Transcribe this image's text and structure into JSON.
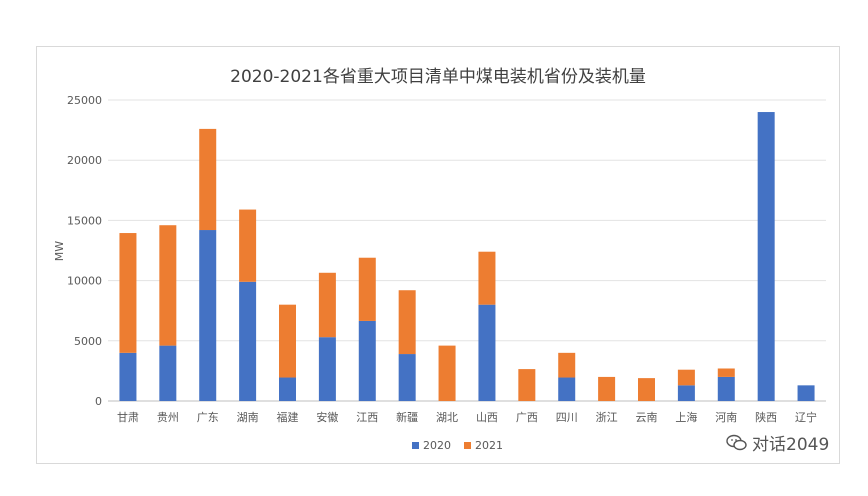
{
  "chart_data": {
    "type": "bar",
    "stacked": true,
    "title": "2020-2021各省重大项目清单中煤电装机省份及装机量",
    "xlabel": "",
    "ylabel": "MW",
    "ylim": [
      0,
      25000
    ],
    "yticks": [
      "0",
      "5000",
      "10000",
      "15000",
      "20000",
      "25000"
    ],
    "grid": true,
    "legend_position": "bottom",
    "categories": [
      "甘肃",
      "贵州",
      "广东",
      "湖南",
      "福建",
      "安徽",
      "江西",
      "新疆",
      "湖北",
      "山西",
      "广西",
      "四川",
      "浙江",
      "云南",
      "上海",
      "河南",
      "陕西",
      "辽宁"
    ],
    "series": [
      {
        "name": "2020",
        "color": "#4472c4",
        "values": [
          4000,
          4600,
          14200,
          9900,
          1950,
          5300,
          6650,
          3900,
          0,
          8000,
          0,
          1950,
          0,
          0,
          1300,
          2000,
          24000,
          1300
        ]
      },
      {
        "name": "2021",
        "color": "#ed7d31",
        "values": [
          9950,
          10000,
          8400,
          6000,
          6050,
          5350,
          5250,
          5300,
          4600,
          4400,
          2650,
          2050,
          2000,
          1900,
          1300,
          700,
          0,
          0
        ]
      }
    ]
  },
  "watermark": {
    "icon": "wechat-icon",
    "text": "对话2049"
  }
}
